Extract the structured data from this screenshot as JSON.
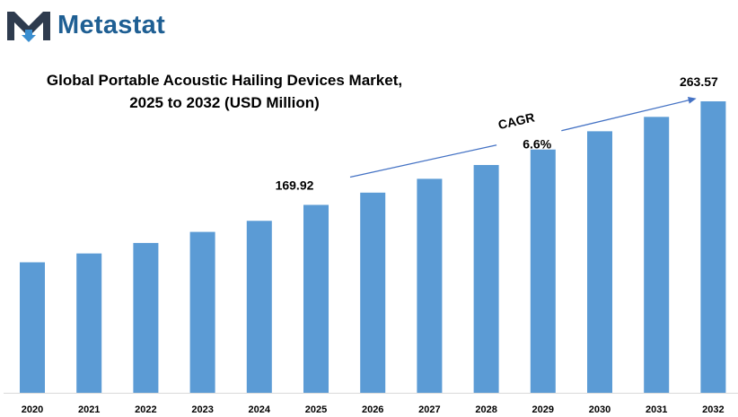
{
  "brand": {
    "name": "Metastat",
    "logo_icon": "metastat-m-logo-icon",
    "color": "#1f5f93"
  },
  "chart_data": {
    "type": "bar",
    "title_line1": "Global Portable Acoustic Hailing Devices Market,",
    "title_line2": "2025 to 2032 (USD Million)",
    "categories": [
      "2020",
      "2021",
      "2022",
      "2023",
      "2024",
      "2025",
      "2026",
      "2027",
      "2028",
      "2029",
      "2030",
      "2031",
      "2032"
    ],
    "values": [
      118,
      126,
      135.5,
      145.5,
      155.5,
      169.92,
      181,
      193.5,
      206,
      220,
      236.5,
      249.5,
      263.57
    ],
    "value_labels": [
      {
        "category": "2025",
        "text": "169.92"
      },
      {
        "category": "2032",
        "text": "263.57"
      }
    ],
    "annotation": {
      "label": "CAGR",
      "value": "6.6%",
      "from": "2025",
      "to": "2032"
    },
    "ylim": [
      0,
      263.57
    ],
    "xlabel": "",
    "ylabel": "",
    "grid": false,
    "legend": "none",
    "bar_color": "#5b9bd5",
    "arrow_color": "#4472c4"
  }
}
